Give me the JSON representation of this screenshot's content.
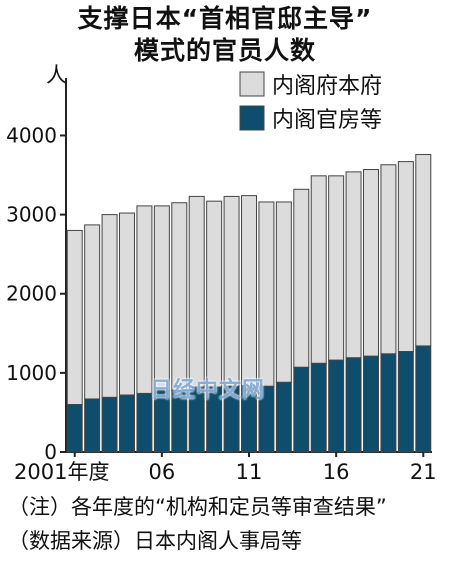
{
  "title": {
    "line1": "支撑日本“首相官邸主导”",
    "line2": "模式的官员人数"
  },
  "notes": {
    "note": "（注）各年度的“机构和定员等审查结果”",
    "source": "（数据来源）日本内阁人事局等"
  },
  "watermark": "日经中文网",
  "colors": {
    "cabinet_office": "#dcdcdc",
    "cabinet_secretariat": "#0e4d6b",
    "bar_border": "#444444",
    "axis": "#222222"
  },
  "chart_data": {
    "type": "bar",
    "stacked": true,
    "y_unit_label": "人",
    "x_tick_labels": [
      {
        "year": 2001,
        "label": "2001年度"
      },
      {
        "year": 2006,
        "label": "06"
      },
      {
        "year": 2011,
        "label": "11"
      },
      {
        "year": 2016,
        "label": "16"
      },
      {
        "year": 2021,
        "label": "21"
      }
    ],
    "categories": [
      2001,
      2002,
      2003,
      2004,
      2005,
      2006,
      2007,
      2008,
      2009,
      2010,
      2011,
      2012,
      2013,
      2014,
      2015,
      2016,
      2017,
      2018,
      2019,
      2020,
      2021
    ],
    "series": [
      {
        "name": "内阁官房等",
        "color_key": "cabinet_secretariat",
        "values": [
          600,
          670,
          690,
          720,
          740,
          780,
          780,
          820,
          820,
          830,
          840,
          830,
          880,
          1070,
          1120,
          1160,
          1190,
          1210,
          1240,
          1270,
          1340
        ]
      },
      {
        "name": "内阁府本府",
        "color_key": "cabinet_office",
        "values": [
          2200,
          2200,
          2310,
          2300,
          2370,
          2330,
          2370,
          2410,
          2350,
          2400,
          2400,
          2330,
          2280,
          2250,
          2370,
          2330,
          2350,
          2360,
          2390,
          2400,
          2420
        ]
      }
    ],
    "yticks": [
      0,
      1000,
      2000,
      3000,
      4000
    ],
    "ylim": [
      0,
      4600
    ],
    "legend_position": "top-right",
    "grid": false
  }
}
